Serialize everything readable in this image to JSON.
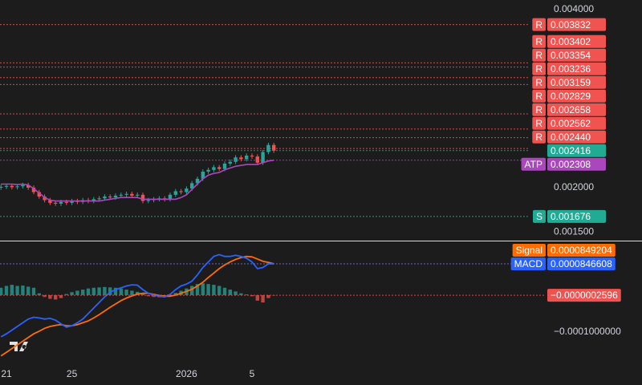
{
  "chart_data": [
    {
      "type": "candlestick",
      "ylim": [
        0.001405,
        0.004108
      ],
      "yticks": [
        {
          "value": 0.004,
          "label": "0.004000"
        },
        {
          "value": 0.002,
          "label": "0.002000"
        },
        {
          "value": 0.0015,
          "label": "0.001500"
        }
      ],
      "xticks": [
        {
          "value": 1,
          "label": "21"
        },
        {
          "value": 13,
          "label": "25"
        },
        {
          "value": 34,
          "label": "2026"
        },
        {
          "value": 46,
          "label": "5"
        }
      ],
      "open": [
        0.002,
        0.00201,
        0.00202,
        0.002005,
        0.002015,
        0.00203,
        0.002,
        0.00195,
        0.0019,
        0.00186,
        0.00183,
        0.00182,
        0.00184,
        0.00183,
        0.00185,
        0.00184,
        0.00186,
        0.00185,
        0.00187,
        0.00188,
        0.0019,
        0.00189,
        0.00191,
        0.00192,
        0.00193,
        0.00191,
        0.00192,
        0.00185,
        0.00186,
        0.00187,
        0.00188,
        0.00187,
        0.00192,
        0.00196,
        0.00195,
        0.00199,
        0.00205,
        0.0021,
        0.00218,
        0.0022,
        0.00223,
        0.00221,
        0.00227,
        0.00229,
        0.00234,
        0.00232,
        0.00236,
        0.00235,
        0.00228,
        0.0024,
        0.00248
      ],
      "high": [
        0.002035,
        0.002045,
        0.002045,
        0.00204,
        0.002055,
        0.002055,
        0.002025,
        0.001975,
        0.001925,
        0.001885,
        0.001855,
        0.001865,
        0.001865,
        0.001875,
        0.001875,
        0.001885,
        0.001885,
        0.001895,
        0.001905,
        0.001925,
        0.001925,
        0.001935,
        0.001945,
        0.001955,
        0.001955,
        0.001945,
        0.001945,
        0.001885,
        0.001895,
        0.001905,
        0.001905,
        0.001945,
        0.001985,
        0.001985,
        0.002015,
        0.002075,
        0.002125,
        0.002205,
        0.002225,
        0.002255,
        0.002255,
        0.002295,
        0.002315,
        0.002365,
        0.002365,
        0.002385,
        0.002385,
        0.002375,
        0.002425,
        0.002505,
        0.002505
      ],
      "low": [
        0.001975,
        0.001985,
        0.00198,
        0.00198,
        0.00199,
        0.001975,
        0.001925,
        0.001875,
        0.001835,
        0.001805,
        0.001795,
        0.001795,
        0.001805,
        0.001805,
        0.001815,
        0.001815,
        0.001825,
        0.001825,
        0.001845,
        0.001855,
        0.001865,
        0.001865,
        0.001885,
        0.001895,
        0.001885,
        0.001885,
        0.001825,
        0.001825,
        0.001835,
        0.001845,
        0.001845,
        0.001845,
        0.001895,
        0.001925,
        0.001925,
        0.001965,
        0.002025,
        0.002075,
        0.002155,
        0.002175,
        0.002185,
        0.002185,
        0.002245,
        0.002265,
        0.002295,
        0.002295,
        0.002325,
        0.002255,
        0.002255,
        0.002375,
        0.002391
      ],
      "close": [
        0.00201,
        0.00202,
        0.002005,
        0.002015,
        0.00203,
        0.002,
        0.00195,
        0.0019,
        0.00186,
        0.00183,
        0.00182,
        0.00184,
        0.00183,
        0.00185,
        0.00184,
        0.00186,
        0.00185,
        0.00187,
        0.00188,
        0.0019,
        0.00189,
        0.00191,
        0.00192,
        0.00193,
        0.00191,
        0.00192,
        0.00185,
        0.00186,
        0.00187,
        0.00188,
        0.00187,
        0.00192,
        0.00196,
        0.00195,
        0.00199,
        0.00205,
        0.0021,
        0.00218,
        0.0022,
        0.00223,
        0.00221,
        0.00227,
        0.00229,
        0.00234,
        0.00232,
        0.00236,
        0.00235,
        0.00228,
        0.0024,
        0.00248,
        0.002416
      ],
      "up_color": "#26a69a",
      "down_color": "#ef5350",
      "price_line_color": "#22ab94",
      "series": [
        {
          "name": "ATP",
          "color": "#ab47bc",
          "values": [
            0.00204,
            0.00204,
            0.00204,
            0.002035,
            0.00204,
            0.00203,
            0.00199,
            0.00194,
            0.00189,
            0.00186,
            0.00185,
            0.00185,
            0.00185,
            0.00185,
            0.00185,
            0.00185,
            0.00185,
            0.00185,
            0.00185,
            0.00186,
            0.00187,
            0.00188,
            0.00189,
            0.00189,
            0.00189,
            0.00189,
            0.00187,
            0.00187,
            0.00187,
            0.00187,
            0.00187,
            0.00187,
            0.00187,
            0.00189,
            0.00192,
            0.00198,
            0.00204,
            0.0021,
            0.00214,
            0.00216,
            0.00217,
            0.0022,
            0.00222,
            0.00224,
            0.00225,
            0.00226,
            0.00226,
            0.00226,
            0.00228,
            0.0023,
            0.002308
          ]
        }
      ],
      "levels": [
        {
          "tag": "R",
          "color": "#f05350",
          "values": [
            0.003832,
            0.003402,
            0.003354,
            0.003236,
            0.003159,
            0.002829,
            0.002658,
            0.002562,
            0.00244
          ],
          "value_labels": [
            "0.003832",
            "0.003402",
            "0.003354",
            "0.003236",
            "0.003159",
            "0.002829",
            "0.002658",
            "0.002562",
            "0.002440"
          ]
        },
        {
          "tag": "S",
          "color": "#22ab94",
          "values": [
            0.001676
          ],
          "value_labels": [
            "0.001676"
          ]
        }
      ]
    },
    {
      "type": "macd",
      "ylim": [
        -0.000196,
        0.0001457
      ],
      "yticks": [
        {
          "value": -0.0001,
          "label": "−0.0001000000"
        }
      ],
      "series": [
        {
          "name": "Signal",
          "color": "#ff6d00",
          "last_label": "0.0000849204",
          "values": [
            -0.000165,
            -0.000155,
            -0.000145,
            -0.000135,
            -0.000125,
            -0.000115,
            -0.000105,
            -9.8e-05,
            -9e-05,
            -8.5e-05,
            -8.2e-05,
            -8e-05,
            -8.3e-05,
            -8.3e-05,
            -8e-05,
            -7.5e-05,
            -7e-05,
            -6.2e-05,
            -5.3e-05,
            -4.3e-05,
            -3.3e-05,
            -2.4e-05,
            -1.5e-05,
            -8e-06,
            -2e-06,
            3e-06,
            5e-06,
            5e-06,
            2e-06,
            -1e-06,
            -3e-06,
            -3e-06,
            0,
            5e-06,
            1e-05,
            1.6e-05,
            2.5e-05,
            3.5e-05,
            4.8e-05,
            6e-05,
            7.2e-05,
            8.2e-05,
            9e-05,
            9.7e-05,
            0.000102,
            0.000105,
            0.000104,
            9.8e-05,
            9.2e-05,
            8.9e-05,
            8.49204e-05
          ]
        },
        {
          "name": "MACD",
          "color": "#2962ff",
          "last_label": "0.0000846608",
          "values": [
            -0.000113,
            -0.000105,
            -9.5e-05,
            -8.5e-05,
            -7.5e-05,
            -6.5e-05,
            -6e-05,
            -6.2e-05,
            -6.5e-05,
            -6.3e-05,
            -6.8e-05,
            -7.8e-05,
            -8.7e-05,
            -8.3e-05,
            -7.5e-05,
            -6.5e-05,
            -5e-05,
            -3.5e-05,
            -2e-05,
            -5e-06,
            8e-06,
            1.5e-05,
            2e-05,
            2.5e-05,
            2.8e-05,
            2.7e-05,
            1.5e-05,
            5e-06,
            0,
            -3e-06,
            -5e-06,
            2e-06,
            1.5e-05,
            2.5e-05,
            3e-05,
            3.8e-05,
            5.5e-05,
            7.5e-05,
            9e-05,
            0.000105,
            0.00011,
            0.000105,
            0.000105,
            0.000108,
            0.000105,
            0.0001,
            9e-05,
            7.2e-05,
            7.5e-05,
            8.5e-05,
            8.46608e-05
          ]
        }
      ],
      "histogram": {
        "up_color": "#26a69a",
        "down_color": "#ef5350",
        "last_label": "−0.0000002596",
        "values": [
          2e-05,
          2.5e-05,
          2.8e-05,
          2.5e-05,
          2.6e-05,
          2.3e-05,
          2e-05,
          5e-06,
          -5e-06,
          -1e-05,
          -1.2e-05,
          -8e-06,
          3e-06,
          8e-06,
          1.2e-05,
          1.5e-05,
          1.8e-05,
          2e-05,
          2.1e-05,
          2.2e-05,
          2.1e-05,
          2e-05,
          1.8e-05,
          1.5e-05,
          1.2e-05,
          9e-06,
          5e-06,
          -3e-06,
          -5e-06,
          -6e-06,
          -5e-06,
          -3e-06,
          6e-06,
          1.2e-05,
          1.8e-05,
          2.5e-05,
          3e-05,
          3.2e-05,
          3e-05,
          2.8e-05,
          2.5e-05,
          2e-05,
          1.5e-05,
          1e-05,
          5e-06,
          2e-06,
          -3e-06,
          -1.5e-05,
          -2e-05,
          -8e-06,
          -2.596e-07
        ]
      }
    }
  ]
}
